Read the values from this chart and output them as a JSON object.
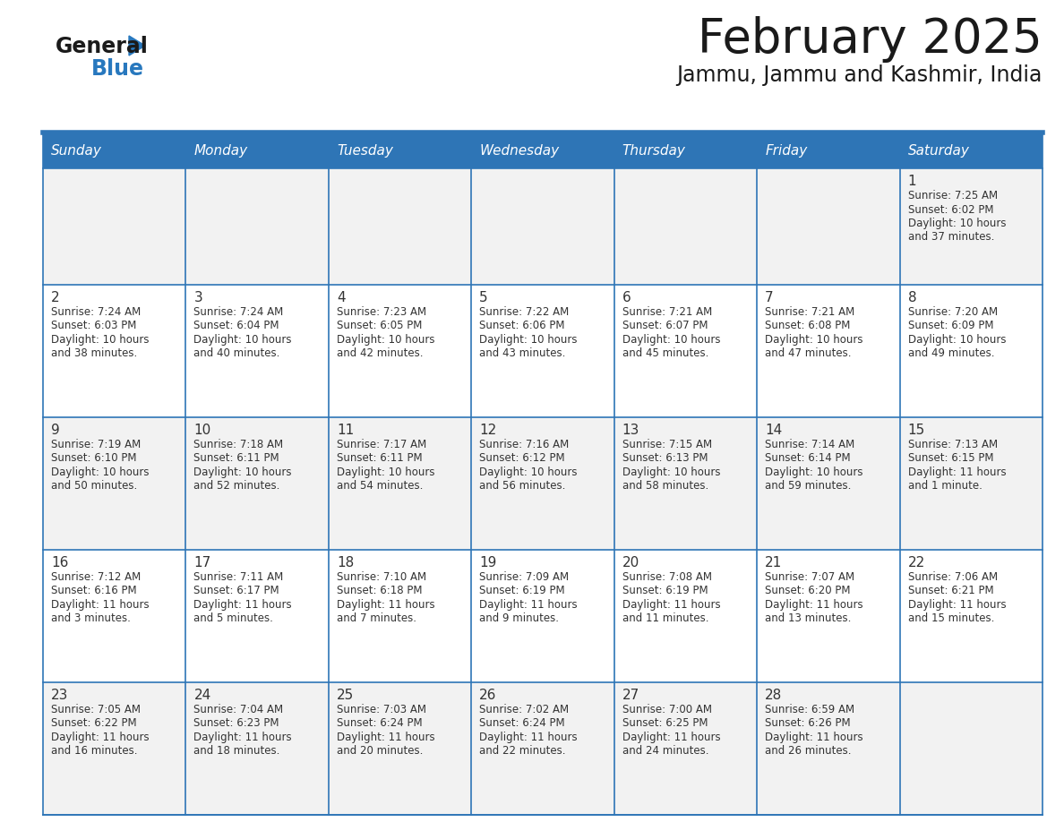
{
  "title": "February 2025",
  "subtitle": "Jammu, Jammu and Kashmir, India",
  "header_bg": "#2E75B6",
  "header_text_color": "#FFFFFF",
  "days_of_week": [
    "Sunday",
    "Monday",
    "Tuesday",
    "Wednesday",
    "Thursday",
    "Friday",
    "Saturday"
  ],
  "cell_bg_even": "#F2F2F2",
  "cell_bg_odd": "#FFFFFF",
  "title_color": "#1A1A1A",
  "subtitle_color": "#1A1A1A",
  "text_color": "#333333",
  "logo_general_color": "#1A1A1A",
  "logo_blue_color": "#2878BE",
  "calendar_data": [
    [
      null,
      null,
      null,
      null,
      null,
      null,
      {
        "day": 1,
        "sunrise": "7:25 AM",
        "sunset": "6:02 PM",
        "daylight": "10 hours and 37 minutes."
      }
    ],
    [
      {
        "day": 2,
        "sunrise": "7:24 AM",
        "sunset": "6:03 PM",
        "daylight": "10 hours and 38 minutes."
      },
      {
        "day": 3,
        "sunrise": "7:24 AM",
        "sunset": "6:04 PM",
        "daylight": "10 hours and 40 minutes."
      },
      {
        "day": 4,
        "sunrise": "7:23 AM",
        "sunset": "6:05 PM",
        "daylight": "10 hours and 42 minutes."
      },
      {
        "day": 5,
        "sunrise": "7:22 AM",
        "sunset": "6:06 PM",
        "daylight": "10 hours and 43 minutes."
      },
      {
        "day": 6,
        "sunrise": "7:21 AM",
        "sunset": "6:07 PM",
        "daylight": "10 hours and 45 minutes."
      },
      {
        "day": 7,
        "sunrise": "7:21 AM",
        "sunset": "6:08 PM",
        "daylight": "10 hours and 47 minutes."
      },
      {
        "day": 8,
        "sunrise": "7:20 AM",
        "sunset": "6:09 PM",
        "daylight": "10 hours and 49 minutes."
      }
    ],
    [
      {
        "day": 9,
        "sunrise": "7:19 AM",
        "sunset": "6:10 PM",
        "daylight": "10 hours and 50 minutes."
      },
      {
        "day": 10,
        "sunrise": "7:18 AM",
        "sunset": "6:11 PM",
        "daylight": "10 hours and 52 minutes."
      },
      {
        "day": 11,
        "sunrise": "7:17 AM",
        "sunset": "6:11 PM",
        "daylight": "10 hours and 54 minutes."
      },
      {
        "day": 12,
        "sunrise": "7:16 AM",
        "sunset": "6:12 PM",
        "daylight": "10 hours and 56 minutes."
      },
      {
        "day": 13,
        "sunrise": "7:15 AM",
        "sunset": "6:13 PM",
        "daylight": "10 hours and 58 minutes."
      },
      {
        "day": 14,
        "sunrise": "7:14 AM",
        "sunset": "6:14 PM",
        "daylight": "10 hours and 59 minutes."
      },
      {
        "day": 15,
        "sunrise": "7:13 AM",
        "sunset": "6:15 PM",
        "daylight": "11 hours and 1 minute."
      }
    ],
    [
      {
        "day": 16,
        "sunrise": "7:12 AM",
        "sunset": "6:16 PM",
        "daylight": "11 hours and 3 minutes."
      },
      {
        "day": 17,
        "sunrise": "7:11 AM",
        "sunset": "6:17 PM",
        "daylight": "11 hours and 5 minutes."
      },
      {
        "day": 18,
        "sunrise": "7:10 AM",
        "sunset": "6:18 PM",
        "daylight": "11 hours and 7 minutes."
      },
      {
        "day": 19,
        "sunrise": "7:09 AM",
        "sunset": "6:19 PM",
        "daylight": "11 hours and 9 minutes."
      },
      {
        "day": 20,
        "sunrise": "7:08 AM",
        "sunset": "6:19 PM",
        "daylight": "11 hours and 11 minutes."
      },
      {
        "day": 21,
        "sunrise": "7:07 AM",
        "sunset": "6:20 PM",
        "daylight": "11 hours and 13 minutes."
      },
      {
        "day": 22,
        "sunrise": "7:06 AM",
        "sunset": "6:21 PM",
        "daylight": "11 hours and 15 minutes."
      }
    ],
    [
      {
        "day": 23,
        "sunrise": "7:05 AM",
        "sunset": "6:22 PM",
        "daylight": "11 hours and 16 minutes."
      },
      {
        "day": 24,
        "sunrise": "7:04 AM",
        "sunset": "6:23 PM",
        "daylight": "11 hours and 18 minutes."
      },
      {
        "day": 25,
        "sunrise": "7:03 AM",
        "sunset": "6:24 PM",
        "daylight": "11 hours and 20 minutes."
      },
      {
        "day": 26,
        "sunrise": "7:02 AM",
        "sunset": "6:24 PM",
        "daylight": "11 hours and 22 minutes."
      },
      {
        "day": 27,
        "sunrise": "7:00 AM",
        "sunset": "6:25 PM",
        "daylight": "11 hours and 24 minutes."
      },
      {
        "day": 28,
        "sunrise": "6:59 AM",
        "sunset": "6:26 PM",
        "daylight": "11 hours and 26 minutes."
      },
      null
    ]
  ]
}
